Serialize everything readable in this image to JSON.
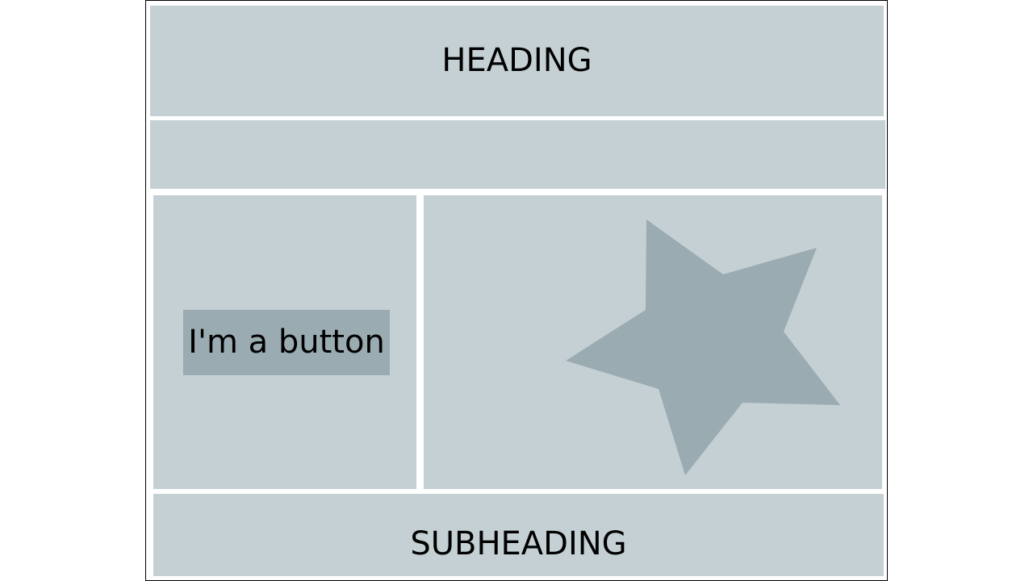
{
  "header": {
    "title": "HEADING"
  },
  "main": {
    "button_label": "I'm a button",
    "graphic_icon": "star-icon"
  },
  "footer": {
    "subtitle": "SUBHEADING"
  },
  "colors": {
    "panel_background": "#c5d0d4",
    "accent": "#9aabb2",
    "text": "#000000",
    "frame_border": "#000000"
  }
}
